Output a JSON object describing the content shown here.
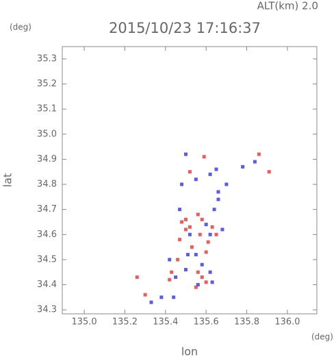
{
  "chart_data": {
    "type": "scatter",
    "title": "2015/10/23 17:16:37",
    "altitude_label": "ALT(km)  2.0",
    "y_unit": "(deg)",
    "x_unit": "(deg)",
    "xlabel": "lon",
    "ylabel": "lat",
    "xlim": [
      134.892,
      136.145
    ],
    "ylim": [
      34.284,
      35.349
    ],
    "xticks": [
      {
        "value": 135,
        "label": "135.0"
      },
      135.2,
      135.4,
      135.6,
      135.8,
      {
        "value": 136,
        "label": "136.0"
      }
    ],
    "yticks": [
      34.3,
      34.4,
      34.5,
      34.6,
      34.7,
      34.8,
      34.9,
      {
        "value": 35,
        "label": "35.0"
      },
      35.1,
      35.2,
      35.3
    ],
    "series": [
      {
        "color": "#f05a5a",
        "x": [
          135.52,
          135.59,
          135.86,
          135.91,
          135.48,
          135.5,
          135.56,
          135.57,
          135.61,
          135.6,
          135.53,
          135.46,
          135.43,
          135.42,
          135.56,
          135.58,
          135.6,
          135.47,
          135.65,
          135.26,
          135.3,
          135.5,
          135.63,
          135.55,
          135.52,
          135.58
        ],
        "y": [
          34.85,
          34.91,
          34.92,
          34.85,
          34.65,
          34.62,
          34.68,
          34.6,
          34.57,
          34.53,
          34.55,
          34.5,
          34.45,
          34.42,
          34.45,
          34.43,
          34.41,
          34.58,
          34.6,
          34.43,
          34.36,
          34.66,
          34.63,
          34.39,
          34.63,
          34.66
        ]
      },
      {
        "color": "#5a5af0",
        "x": [
          135.5,
          135.55,
          135.62,
          135.65,
          135.7,
          135.66,
          135.78,
          135.84,
          135.48,
          135.6,
          135.62,
          135.52,
          135.55,
          135.58,
          135.5,
          135.45,
          135.42,
          135.62,
          135.68,
          135.47,
          135.44,
          135.38,
          135.33,
          135.63,
          135.56,
          135.51,
          135.64,
          135.66
        ],
        "y": [
          34.92,
          34.82,
          34.84,
          34.86,
          34.8,
          34.77,
          34.87,
          34.89,
          34.8,
          34.64,
          34.6,
          34.6,
          34.52,
          34.48,
          34.46,
          34.43,
          34.5,
          34.45,
          34.62,
          34.7,
          34.35,
          34.35,
          34.33,
          34.41,
          34.4,
          34.52,
          34.7,
          34.74
        ]
      }
    ]
  }
}
